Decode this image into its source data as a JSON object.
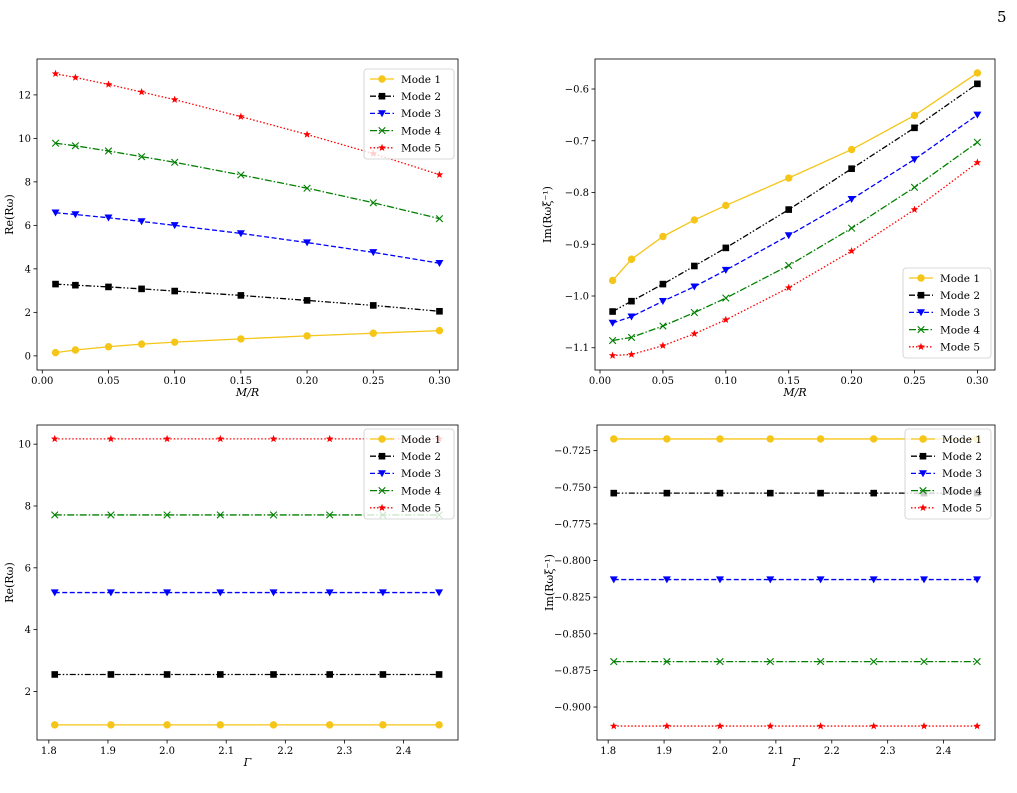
{
  "page": {
    "number": "5"
  },
  "series_style": {
    "names": [
      "Mode 1",
      "Mode 2",
      "Mode 3",
      "Mode 4",
      "Mode 5"
    ],
    "colors": [
      "#f5c518",
      "#000000",
      "#0000ff",
      "#008000",
      "#ff0000"
    ],
    "markers": [
      "circle",
      "square",
      "triangle-down",
      "x",
      "star"
    ],
    "line_styles": [
      "solid",
      "dash-dot-dot",
      "dashed",
      "dash-dot",
      "dotted"
    ]
  },
  "chart_data": [
    {
      "type": "line",
      "title": "",
      "xlabel": "M/R",
      "ylabel": "Re(Rω)",
      "xlim": [
        -0.004,
        0.314
      ],
      "ylim": [
        -0.65,
        13.65
      ],
      "xticks": [
        0.0,
        0.05,
        0.1,
        0.15,
        0.2,
        0.25,
        0.3
      ],
      "xtick_labels": [
        "0.00",
        "0.05",
        "0.10",
        "0.15",
        "0.20",
        "0.25",
        "0.30"
      ],
      "yticks": [
        0,
        2,
        4,
        6,
        8,
        10,
        12
      ],
      "ytick_labels": [
        "0",
        "2",
        "4",
        "6",
        "8",
        "10",
        "12"
      ],
      "x": [
        0.01,
        0.025,
        0.05,
        0.075,
        0.1,
        0.15,
        0.2,
        0.25,
        0.3
      ],
      "legend_position": "top-right",
      "series": [
        {
          "name": "Mode 1",
          "values": [
            0.15,
            0.27,
            0.42,
            0.54,
            0.63,
            0.78,
            0.92,
            1.04,
            1.16
          ]
        },
        {
          "name": "Mode 2",
          "values": [
            3.3,
            3.25,
            3.17,
            3.08,
            2.98,
            2.78,
            2.55,
            2.32,
            2.05
          ]
        },
        {
          "name": "Mode 3",
          "values": [
            6.58,
            6.5,
            6.35,
            6.18,
            6.0,
            5.63,
            5.21,
            4.76,
            4.26
          ]
        },
        {
          "name": "Mode 4",
          "values": [
            9.78,
            9.66,
            9.42,
            9.16,
            8.9,
            8.32,
            7.71,
            7.04,
            6.31
          ]
        },
        {
          "name": "Mode 5",
          "values": [
            12.97,
            12.8,
            12.48,
            12.13,
            11.78,
            11.0,
            10.18,
            9.3,
            8.33
          ]
        }
      ]
    },
    {
      "type": "line",
      "title": "",
      "xlabel": "M/R",
      "ylabel": "Im(Rωξ⁻¹)",
      "xlim": [
        -0.004,
        0.314
      ],
      "ylim": [
        -1.143,
        -0.542
      ],
      "xticks": [
        0.0,
        0.05,
        0.1,
        0.15,
        0.2,
        0.25,
        0.3
      ],
      "xtick_labels": [
        "0.00",
        "0.05",
        "0.10",
        "0.15",
        "0.20",
        "0.25",
        "0.30"
      ],
      "yticks": [
        -1.1,
        -1.0,
        -0.9,
        -0.8,
        -0.7,
        -0.6
      ],
      "ytick_labels": [
        "−1.1",
        "−1.0",
        "−0.9",
        "−0.8",
        "−0.7",
        "−0.6"
      ],
      "x": [
        0.01,
        0.025,
        0.05,
        0.075,
        0.1,
        0.15,
        0.2,
        0.25,
        0.3
      ],
      "legend_position": "bottom-right",
      "series": [
        {
          "name": "Mode 1",
          "values": [
            -0.97,
            -0.929,
            -0.885,
            -0.853,
            -0.825,
            -0.772,
            -0.717,
            -0.651,
            -0.569
          ]
        },
        {
          "name": "Mode 2",
          "values": [
            -1.03,
            -1.01,
            -0.977,
            -0.942,
            -0.907,
            -0.833,
            -0.754,
            -0.675,
            -0.59
          ]
        },
        {
          "name": "Mode 3",
          "values": [
            -1.052,
            -1.04,
            -1.01,
            -0.982,
            -0.95,
            -0.883,
            -0.813,
            -0.736,
            -0.65
          ]
        },
        {
          "name": "Mode 4",
          "values": [
            -1.086,
            -1.08,
            -1.058,
            -1.032,
            -1.004,
            -0.941,
            -0.869,
            -0.79,
            -0.703
          ]
        },
        {
          "name": "Mode 5",
          "values": [
            -1.115,
            -1.113,
            -1.096,
            -1.073,
            -1.046,
            -0.984,
            -0.913,
            -0.833,
            -0.742
          ]
        }
      ]
    },
    {
      "type": "line",
      "title": "",
      "xlabel": "Γ",
      "ylabel": "Re(Rω)",
      "xlim": [
        1.78,
        2.492
      ],
      "ylim": [
        0.43,
        10.62
      ],
      "xticks": [
        1.8,
        1.9,
        2.0,
        2.1,
        2.2,
        2.3,
        2.4
      ],
      "xtick_labels": [
        "1.8",
        "1.9",
        "2.0",
        "2.1",
        "2.2",
        "2.3",
        "2.4"
      ],
      "yticks": [
        2,
        4,
        6,
        8,
        10
      ],
      "ytick_labels": [
        "2",
        "4",
        "6",
        "8",
        "10"
      ],
      "x": [
        1.81,
        1.905,
        2.0,
        2.09,
        2.18,
        2.275,
        2.365,
        2.46
      ],
      "legend_position": "top-right",
      "series": [
        {
          "name": "Mode 1",
          "values": [
            0.92,
            0.92,
            0.92,
            0.92,
            0.92,
            0.92,
            0.92,
            0.92
          ]
        },
        {
          "name": "Mode 2",
          "values": [
            2.55,
            2.55,
            2.55,
            2.55,
            2.55,
            2.55,
            2.55,
            2.55
          ]
        },
        {
          "name": "Mode 3",
          "values": [
            5.2,
            5.2,
            5.2,
            5.2,
            5.2,
            5.2,
            5.2,
            5.2
          ]
        },
        {
          "name": "Mode 4",
          "values": [
            7.71,
            7.71,
            7.71,
            7.71,
            7.71,
            7.71,
            7.71,
            7.71
          ]
        },
        {
          "name": "Mode 5",
          "values": [
            10.17,
            10.17,
            10.17,
            10.17,
            10.17,
            10.17,
            10.17,
            10.17
          ]
        }
      ]
    },
    {
      "type": "line",
      "title": "",
      "xlabel": "Γ",
      "ylabel": "Im(Rωξ⁻¹)",
      "xlim": [
        1.78,
        2.492
      ],
      "ylim": [
        -0.9225,
        -0.7075
      ],
      "xticks": [
        1.8,
        1.9,
        2.0,
        2.1,
        2.2,
        2.3,
        2.4
      ],
      "xtick_labels": [
        "1.8",
        "1.9",
        "2.0",
        "2.1",
        "2.2",
        "2.3",
        "2.4"
      ],
      "yticks": [
        -0.725,
        -0.75,
        -0.775,
        -0.8,
        -0.825,
        -0.85,
        -0.875,
        -0.9
      ],
      "ytick_labels": [
        "−0.725",
        "−0.750",
        "−0.775",
        "−0.800",
        "−0.825",
        "−0.850",
        "−0.875",
        "−0.900"
      ],
      "x": [
        1.81,
        1.905,
        2.0,
        2.09,
        2.18,
        2.275,
        2.365,
        2.46
      ],
      "legend_position": "top-right",
      "series": [
        {
          "name": "Mode 1",
          "values": [
            -0.717,
            -0.717,
            -0.717,
            -0.717,
            -0.717,
            -0.717,
            -0.717,
            -0.717
          ]
        },
        {
          "name": "Mode 2",
          "values": [
            -0.754,
            -0.754,
            -0.754,
            -0.754,
            -0.754,
            -0.754,
            -0.754,
            -0.754
          ]
        },
        {
          "name": "Mode 3",
          "values": [
            -0.813,
            -0.813,
            -0.813,
            -0.813,
            -0.813,
            -0.813,
            -0.813,
            -0.813
          ]
        },
        {
          "name": "Mode 4",
          "values": [
            -0.869,
            -0.869,
            -0.869,
            -0.869,
            -0.869,
            -0.869,
            -0.869,
            -0.869
          ]
        },
        {
          "name": "Mode 5",
          "values": [
            -0.913,
            -0.913,
            -0.913,
            -0.913,
            -0.913,
            -0.913,
            -0.913,
            -0.913
          ]
        }
      ]
    }
  ]
}
